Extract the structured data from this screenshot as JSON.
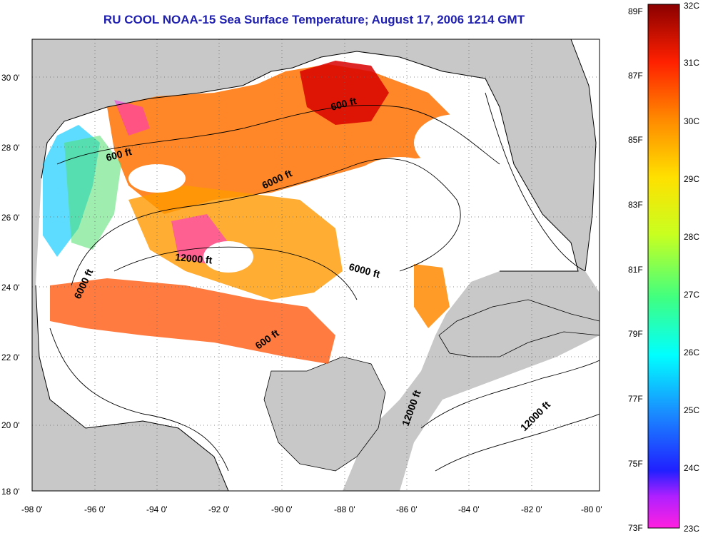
{
  "title": "RU COOL  NOAA-15  Sea Surface Temperature;  August 17, 2006 1214 GMT",
  "lat_ticks": [
    "30 0'",
    "28 0'",
    "26 0'",
    "24 0'",
    "22 0'",
    "20 0'",
    "18 0'"
  ],
  "lon_ticks": [
    "-98 0'",
    "-96 0'",
    "-94 0'",
    "-92 0'",
    "-90 0'",
    "-88 0'",
    "-86 0'",
    "-84 0'",
    "-82 0'",
    "-80 0'"
  ],
  "contour_labels": [
    "600 ft",
    "600 ft",
    "6000 ft",
    "12000 ft",
    "6000 ft",
    "6000 ft",
    "600 ft",
    "12000 ft",
    "12000 ft"
  ],
  "colorbar": {
    "fahrenheit": [
      "89F",
      "87F",
      "85F",
      "83F",
      "81F",
      "79F",
      "77F",
      "75F",
      "73F"
    ],
    "celsius": [
      "32C",
      "31C",
      "30C",
      "29C",
      "28C",
      "27C",
      "26C",
      "25C",
      "24C",
      "23C"
    ]
  },
  "colors": {
    "title": "#1f1fb0",
    "land": "#c8c8c8",
    "water_cloud": "#ffffff",
    "warm": "#ff3a10",
    "hot": "#d80000",
    "mid": "#ff9a00",
    "cool": "#28d0ff",
    "magenta": "#ff20e0"
  }
}
